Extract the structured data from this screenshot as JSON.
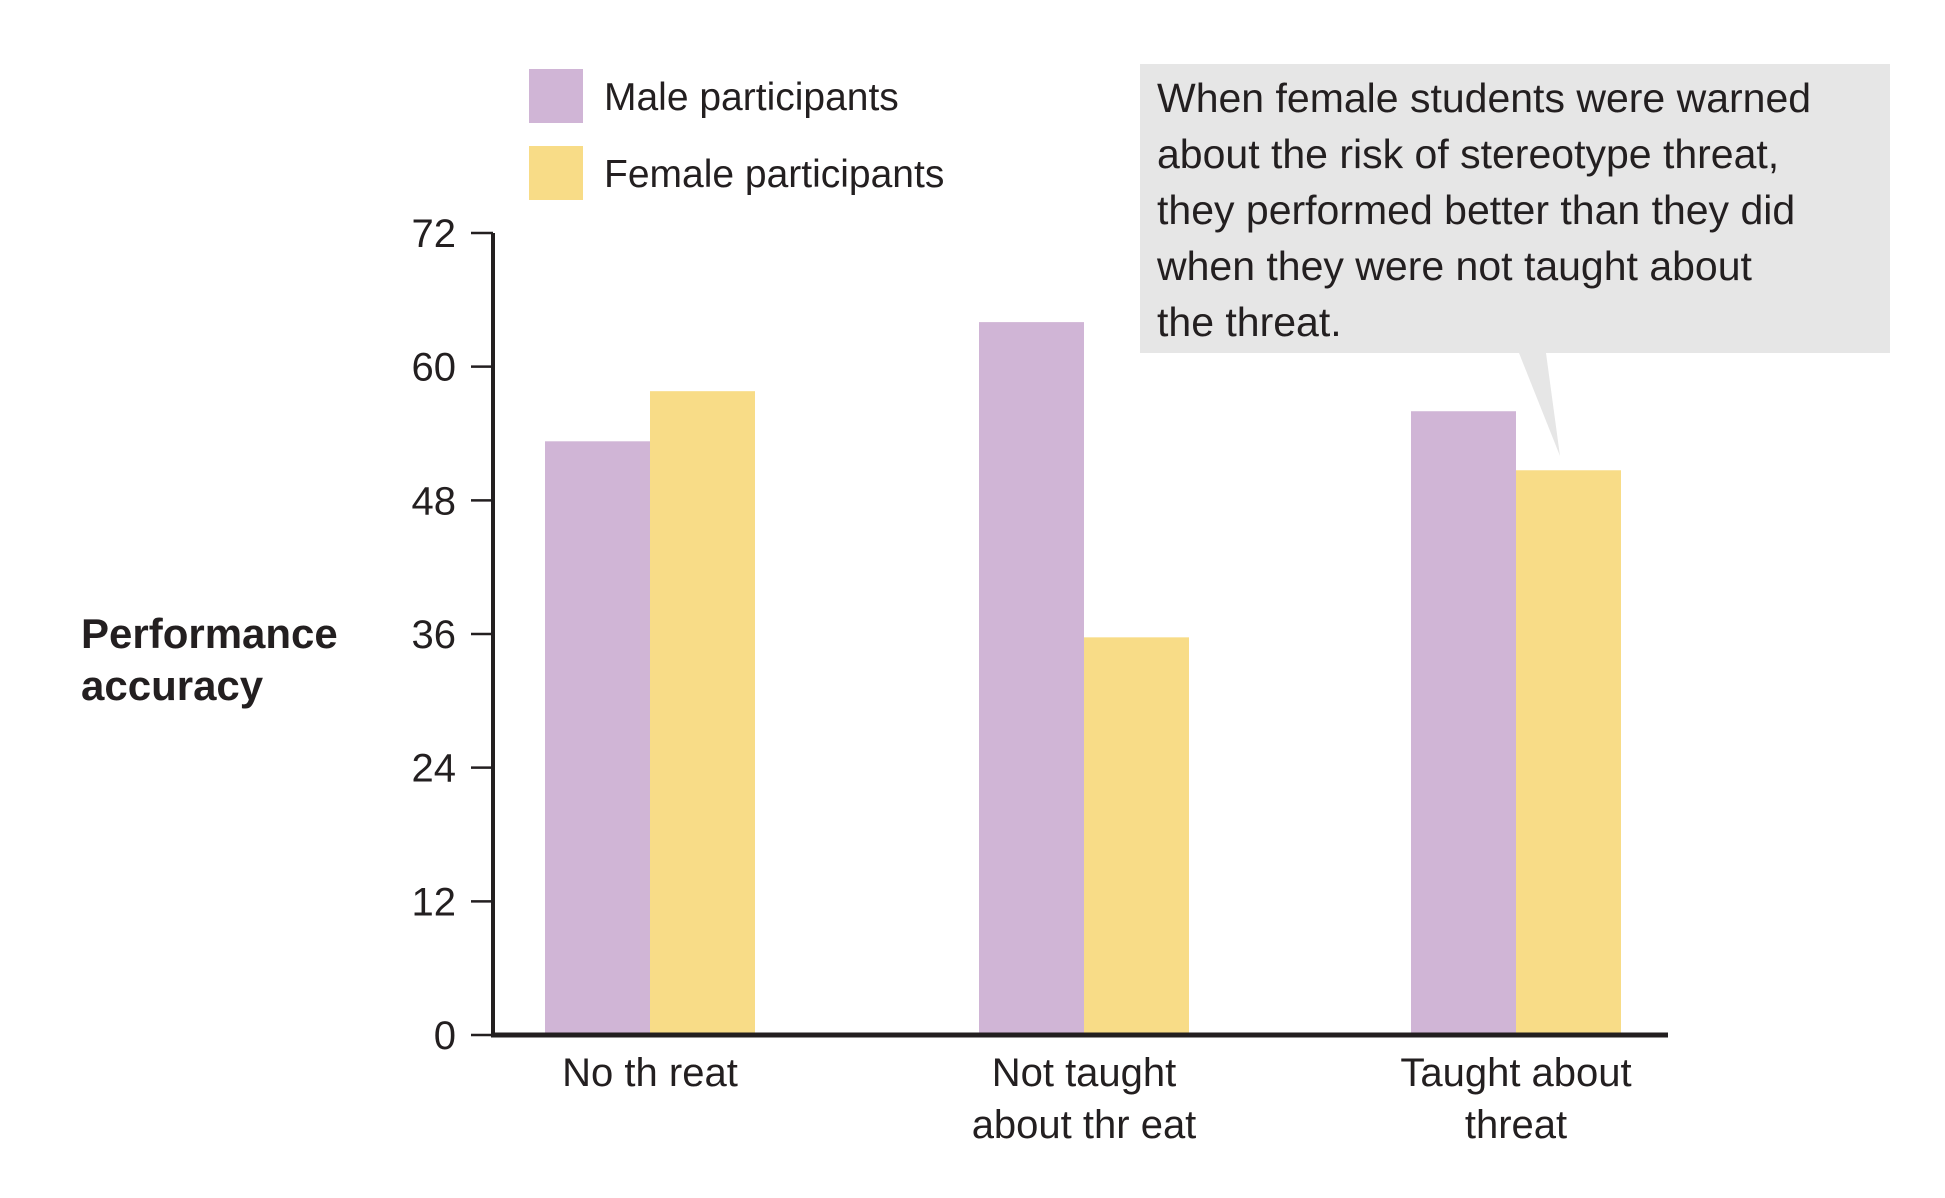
{
  "chart_data": {
    "type": "bar",
    "title": "",
    "xlabel": "",
    "ylabel": "Performance accuracy",
    "ylabel_lines": [
      "Performance",
      "accuracy"
    ],
    "ylim": [
      0,
      72
    ],
    "yticks": [
      0,
      12,
      24,
      36,
      48,
      60,
      72
    ],
    "categories": [
      "No threat",
      "Not taught about threat",
      "Taught about threat"
    ],
    "category_lines": [
      [
        "No th reat"
      ],
      [
        "Not taught",
        "about thr eat"
      ],
      [
        "Taught about",
        "threat"
      ]
    ],
    "series": [
      {
        "name": "Male participants",
        "color": "#d0b5d6",
        "values": [
          53.3,
          64.0,
          56.0
        ]
      },
      {
        "name": "Female participants",
        "color": "#f8dc87",
        "values": [
          57.8,
          35.7,
          50.7
        ]
      }
    ],
    "legend_position": "top-left",
    "grid": false,
    "annotation": {
      "lines": [
        "When female students were warned",
        "about the risk of stereotype threat,",
        "they performed better than they did",
        "when they were not taught about",
        "the threat."
      ],
      "background": "#e6e6e6",
      "points_to": "Taught about threat / Female participants"
    }
  }
}
